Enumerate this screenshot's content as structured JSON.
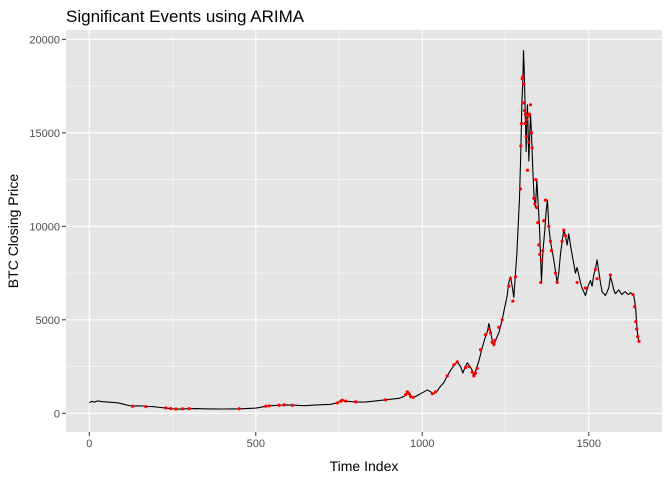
{
  "chart_data": {
    "type": "line",
    "title": "Significant Events using ARIMA",
    "xlabel": "Time Index",
    "ylabel": "BTC Closing Price",
    "xlim": [
      -70,
      1720
    ],
    "ylim": [
      -1000,
      20500
    ],
    "x_ticks": [
      0,
      500,
      1000,
      1500
    ],
    "y_ticks": [
      0,
      5000,
      10000,
      15000,
      20000
    ],
    "grid": true,
    "colors": {
      "panel": "#e5e5e5",
      "grid_major": "#ffffff",
      "line": "#000000",
      "event": "#ff0000",
      "tick": "#333333"
    },
    "series": [
      {
        "kind": "line",
        "points": [
          [
            0,
            580
          ],
          [
            8,
            640
          ],
          [
            15,
            600
          ],
          [
            25,
            660
          ],
          [
            40,
            620
          ],
          [
            55,
            600
          ],
          [
            70,
            580
          ],
          [
            85,
            560
          ],
          [
            100,
            500
          ],
          [
            115,
            430
          ],
          [
            130,
            380
          ],
          [
            145,
            400
          ],
          [
            160,
            390
          ],
          [
            175,
            370
          ],
          [
            190,
            360
          ],
          [
            205,
            330
          ],
          [
            220,
            300
          ],
          [
            230,
            280
          ],
          [
            240,
            260
          ],
          [
            250,
            240
          ],
          [
            260,
            230
          ],
          [
            270,
            225
          ],
          [
            285,
            235
          ],
          [
            300,
            245
          ],
          [
            320,
            255
          ],
          [
            345,
            240
          ],
          [
            370,
            235
          ],
          [
            400,
            230
          ],
          [
            430,
            235
          ],
          [
            455,
            240
          ],
          [
            480,
            260
          ],
          [
            500,
            280
          ],
          [
            515,
            320
          ],
          [
            530,
            380
          ],
          [
            545,
            410
          ],
          [
            560,
            420
          ],
          [
            575,
            430
          ],
          [
            590,
            450
          ],
          [
            610,
            440
          ],
          [
            630,
            420
          ],
          [
            650,
            410
          ],
          [
            675,
            440
          ],
          [
            700,
            460
          ],
          [
            725,
            480
          ],
          [
            745,
            560
          ],
          [
            755,
            660
          ],
          [
            760,
            700
          ],
          [
            770,
            650
          ],
          [
            790,
            620
          ],
          [
            810,
            600
          ],
          [
            830,
            610
          ],
          [
            850,
            640
          ],
          [
            870,
            680
          ],
          [
            890,
            720
          ],
          [
            910,
            760
          ],
          [
            930,
            800
          ],
          [
            945,
            900
          ],
          [
            952,
            1050
          ],
          [
            958,
            1150
          ],
          [
            963,
            1050
          ],
          [
            968,
            900
          ],
          [
            975,
            850
          ],
          [
            985,
            950
          ],
          [
            995,
            1050
          ],
          [
            1005,
            1150
          ],
          [
            1015,
            1250
          ],
          [
            1025,
            1150
          ],
          [
            1035,
            1050
          ],
          [
            1045,
            1200
          ],
          [
            1055,
            1450
          ],
          [
            1065,
            1650
          ],
          [
            1075,
            2000
          ],
          [
            1085,
            2300
          ],
          [
            1095,
            2550
          ],
          [
            1105,
            2750
          ],
          [
            1115,
            2500
          ],
          [
            1122,
            2150
          ],
          [
            1128,
            2450
          ],
          [
            1135,
            2700
          ],
          [
            1142,
            2550
          ],
          [
            1150,
            2300
          ],
          [
            1155,
            2000
          ],
          [
            1160,
            2250
          ],
          [
            1170,
            2800
          ],
          [
            1180,
            3500
          ],
          [
            1188,
            4000
          ],
          [
            1195,
            4350
          ],
          [
            1200,
            4800
          ],
          [
            1205,
            4400
          ],
          [
            1210,
            3900
          ],
          [
            1215,
            3600
          ],
          [
            1220,
            3900
          ],
          [
            1230,
            4300
          ],
          [
            1240,
            5000
          ],
          [
            1248,
            5700
          ],
          [
            1255,
            6300
          ],
          [
            1260,
            7000
          ],
          [
            1265,
            7300
          ],
          [
            1270,
            6800
          ],
          [
            1275,
            6200
          ],
          [
            1280,
            7500
          ],
          [
            1284,
            8500
          ],
          [
            1288,
            10000
          ],
          [
            1292,
            11500
          ],
          [
            1296,
            14000
          ],
          [
            1299,
            16500
          ],
          [
            1302,
            17800
          ],
          [
            1304,
            19400
          ],
          [
            1306,
            18500
          ],
          [
            1308,
            17000
          ],
          [
            1310,
            15500
          ],
          [
            1312,
            14000
          ],
          [
            1314,
            15800
          ],
          [
            1316,
            16500
          ],
          [
            1318,
            15000
          ],
          [
            1320,
            13500
          ],
          [
            1322,
            14500
          ],
          [
            1325,
            16000
          ],
          [
            1328,
            15000
          ],
          [
            1332,
            13000
          ],
          [
            1336,
            11500
          ],
          [
            1340,
            11000
          ],
          [
            1344,
            12500
          ],
          [
            1348,
            11200
          ],
          [
            1352,
            10000
          ],
          [
            1355,
            8500
          ],
          [
            1358,
            7000
          ],
          [
            1361,
            8200
          ],
          [
            1364,
            9000
          ],
          [
            1368,
            9800
          ],
          [
            1372,
            10800
          ],
          [
            1376,
            11400
          ],
          [
            1380,
            10000
          ],
          [
            1385,
            9200
          ],
          [
            1390,
            8700
          ],
          [
            1395,
            8200
          ],
          [
            1400,
            7600
          ],
          [
            1405,
            7000
          ],
          [
            1410,
            7500
          ],
          [
            1415,
            8500
          ],
          [
            1420,
            9200
          ],
          [
            1425,
            9800
          ],
          [
            1430,
            9500
          ],
          [
            1435,
            9000
          ],
          [
            1440,
            9600
          ],
          [
            1445,
            9000
          ],
          [
            1450,
            8500
          ],
          [
            1455,
            8000
          ],
          [
            1460,
            7500
          ],
          [
            1465,
            7800
          ],
          [
            1470,
            7400
          ],
          [
            1475,
            7000
          ],
          [
            1480,
            6700
          ],
          [
            1485,
            6500
          ],
          [
            1490,
            6300
          ],
          [
            1495,
            6600
          ],
          [
            1500,
            6900
          ],
          [
            1505,
            7100
          ],
          [
            1510,
            6800
          ],
          [
            1515,
            7400
          ],
          [
            1520,
            7700
          ],
          [
            1525,
            8200
          ],
          [
            1530,
            7600
          ],
          [
            1535,
            7000
          ],
          [
            1540,
            6500
          ],
          [
            1545,
            6400
          ],
          [
            1550,
            6300
          ],
          [
            1555,
            6500
          ],
          [
            1560,
            6700
          ],
          [
            1565,
            7300
          ],
          [
            1570,
            7000
          ],
          [
            1575,
            6600
          ],
          [
            1580,
            6400
          ],
          [
            1585,
            6500
          ],
          [
            1590,
            6600
          ],
          [
            1595,
            6450
          ],
          [
            1600,
            6350
          ],
          [
            1605,
            6450
          ],
          [
            1610,
            6500
          ],
          [
            1615,
            6400
          ],
          [
            1620,
            6350
          ],
          [
            1625,
            6450
          ],
          [
            1630,
            6400
          ],
          [
            1635,
            6300
          ],
          [
            1638,
            6000
          ],
          [
            1641,
            5600
          ],
          [
            1643,
            5000
          ],
          [
            1645,
            4600
          ],
          [
            1647,
            4200
          ],
          [
            1649,
            4000
          ],
          [
            1651,
            3800
          ]
        ]
      },
      {
        "kind": "scatter",
        "points": [
          [
            130,
            380
          ],
          [
            170,
            360
          ],
          [
            230,
            290
          ],
          [
            245,
            250
          ],
          [
            260,
            230
          ],
          [
            280,
            240
          ],
          [
            300,
            250
          ],
          [
            450,
            240
          ],
          [
            530,
            380
          ],
          [
            540,
            400
          ],
          [
            570,
            430
          ],
          [
            585,
            450
          ],
          [
            610,
            430
          ],
          [
            745,
            560
          ],
          [
            755,
            650
          ],
          [
            760,
            700
          ],
          [
            770,
            650
          ],
          [
            800,
            610
          ],
          [
            890,
            720
          ],
          [
            950,
            1000
          ],
          [
            955,
            1150
          ],
          [
            960,
            1050
          ],
          [
            965,
            900
          ],
          [
            972,
            850
          ],
          [
            1030,
            1050
          ],
          [
            1040,
            1150
          ],
          [
            1075,
            2000
          ],
          [
            1095,
            2600
          ],
          [
            1105,
            2750
          ],
          [
            1130,
            2450
          ],
          [
            1140,
            2500
          ],
          [
            1150,
            2200
          ],
          [
            1155,
            2000
          ],
          [
            1160,
            2150
          ],
          [
            1165,
            2400
          ],
          [
            1175,
            3400
          ],
          [
            1190,
            4200
          ],
          [
            1200,
            4500
          ],
          [
            1205,
            4300
          ],
          [
            1210,
            3800
          ],
          [
            1215,
            3700
          ],
          [
            1218,
            3900
          ],
          [
            1230,
            4600
          ],
          [
            1240,
            5000
          ],
          [
            1260,
            6800
          ],
          [
            1265,
            7200
          ],
          [
            1272,
            6000
          ],
          [
            1280,
            7300
          ],
          [
            1295,
            12000
          ],
          [
            1296,
            14300
          ],
          [
            1298,
            15500
          ],
          [
            1300,
            17900
          ],
          [
            1302,
            18000
          ],
          [
            1303,
            16600
          ],
          [
            1305,
            17600
          ],
          [
            1307,
            16200
          ],
          [
            1309,
            15500
          ],
          [
            1310,
            16000
          ],
          [
            1312,
            14800
          ],
          [
            1314,
            15700
          ],
          [
            1316,
            13000
          ],
          [
            1318,
            15900
          ],
          [
            1320,
            14500
          ],
          [
            1322,
            16000
          ],
          [
            1325,
            16500
          ],
          [
            1328,
            15000
          ],
          [
            1330,
            14200
          ],
          [
            1335,
            11500
          ],
          [
            1338,
            11200
          ],
          [
            1341,
            12500
          ],
          [
            1344,
            11000
          ],
          [
            1347,
            10200
          ],
          [
            1350,
            9000
          ],
          [
            1353,
            8500
          ],
          [
            1356,
            7000
          ],
          [
            1358,
            8200
          ],
          [
            1362,
            8700
          ],
          [
            1365,
            10300
          ],
          [
            1370,
            11400
          ],
          [
            1380,
            10000
          ],
          [
            1385,
            9200
          ],
          [
            1388,
            8700
          ],
          [
            1400,
            7500
          ],
          [
            1405,
            7000
          ],
          [
            1420,
            9200
          ],
          [
            1425,
            9800
          ],
          [
            1430,
            9500
          ],
          [
            1465,
            7000
          ],
          [
            1490,
            6700
          ],
          [
            1520,
            7700
          ],
          [
            1525,
            7200
          ],
          [
            1565,
            7400
          ],
          [
            1633,
            6350
          ],
          [
            1638,
            5700
          ],
          [
            1641,
            4900
          ],
          [
            1644,
            4500
          ],
          [
            1647,
            4100
          ],
          [
            1651,
            3850
          ]
        ]
      }
    ]
  }
}
